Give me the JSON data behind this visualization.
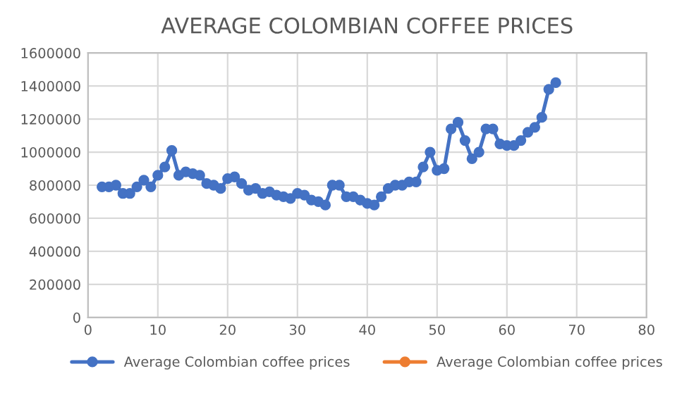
{
  "chart_data": {
    "type": "line",
    "title": "AVERAGE COLOMBIAN COFFEE PRICES",
    "x": [
      2,
      3,
      4,
      5,
      6,
      7,
      8,
      9,
      10,
      11,
      12,
      13,
      14,
      15,
      16,
      17,
      18,
      19,
      20,
      21,
      22,
      23,
      24,
      25,
      26,
      27,
      28,
      29,
      30,
      31,
      32,
      33,
      34,
      35,
      36,
      37,
      38,
      39,
      40,
      41,
      42,
      43,
      44,
      45,
      46,
      47,
      48,
      49,
      50,
      51,
      52,
      53,
      54,
      55,
      56,
      57,
      58,
      59,
      60,
      61,
      62,
      63,
      64,
      65,
      66,
      67
    ],
    "series": [
      {
        "name": "Average Colombian coffee prices",
        "color": "#4472c4",
        "values": [
          790000,
          790000,
          800000,
          750000,
          750000,
          790000,
          830000,
          790000,
          860000,
          910000,
          1010000,
          860000,
          880000,
          870000,
          860000,
          810000,
          800000,
          780000,
          840000,
          850000,
          810000,
          770000,
          780000,
          750000,
          760000,
          740000,
          730000,
          720000,
          750000,
          740000,
          710000,
          700000,
          680000,
          800000,
          800000,
          730000,
          730000,
          710000,
          690000,
          680000,
          730000,
          780000,
          800000,
          800000,
          820000,
          820000,
          910000,
          1000000,
          890000,
          900000,
          1140000,
          1180000,
          1070000,
          960000,
          1000000,
          1140000,
          1140000,
          1050000,
          1040000,
          1040000,
          1070000,
          1120000,
          1150000,
          1210000,
          1380000,
          1420000
        ]
      },
      {
        "name": "Average Colombian coffee prices",
        "color": "#ed7d31",
        "values": [
          null,
          null,
          null,
          null,
          null,
          null,
          null,
          null,
          null,
          null,
          null,
          null,
          null,
          null,
          null,
          null,
          null,
          null,
          null,
          null,
          null,
          null,
          null,
          null,
          null,
          null,
          null,
          null,
          null,
          null,
          null,
          null,
          null,
          null,
          null,
          null,
          null,
          null,
          null,
          null,
          null,
          null,
          null,
          null,
          null,
          null,
          null,
          null,
          null,
          null,
          null,
          null,
          null,
          null,
          null,
          null,
          null,
          null,
          null,
          null,
          null,
          null,
          null,
          null,
          null,
          null
        ]
      }
    ],
    "xlim": [
      0,
      80
    ],
    "xticks": [
      0,
      10,
      20,
      30,
      40,
      50,
      60,
      70,
      80
    ],
    "ylim": [
      0,
      1600000
    ],
    "yticks": [
      0,
      200000,
      400000,
      600000,
      800000,
      1000000,
      1200000,
      1400000,
      1600000
    ],
    "grid": true,
    "legend": "bottom",
    "marker": "circle",
    "line_style": "solid"
  }
}
